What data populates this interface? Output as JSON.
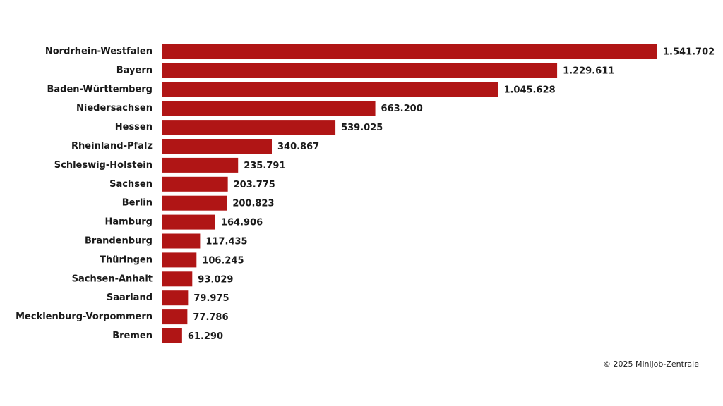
{
  "chart_data": {
    "type": "bar",
    "orientation": "horizontal",
    "color": "#b01515",
    "categories": [
      "Nordrhein-Westfalen",
      "Bayern",
      "Baden-Württemberg",
      "Niedersachsen",
      "Hessen",
      "Rheinland-Pfalz",
      "Schleswig-Holstein",
      "Sachsen",
      "Berlin",
      "Hamburg",
      "Brandenburg",
      "Thüringen",
      "Sachsen-Anhalt",
      "Saarland",
      "Mecklenburg-Vorpommern",
      "Bremen"
    ],
    "values": [
      1541702,
      1229611,
      1045628,
      663200,
      539025,
      340867,
      235791,
      203775,
      200823,
      164906,
      117435,
      106245,
      93029,
      79975,
      77786,
      61290
    ],
    "value_labels": [
      "1.541.702",
      "1.229.611",
      "1.045.628",
      "663.200",
      "539.025",
      "340.867",
      "235.791",
      "203.775",
      "200.823",
      "164.906",
      "117.435",
      "106.245",
      "93.029",
      "79.975",
      "77.786",
      "61.290"
    ],
    "source": "© 2025 Minijob-Zentrale"
  }
}
